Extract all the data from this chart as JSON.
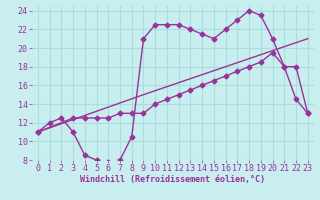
{
  "background_color": "#c8eef0",
  "grid_color": "#aadddd",
  "line_color": "#993399",
  "xlim": [
    -0.5,
    23.5
  ],
  "ylim": [
    8,
    24.5
  ],
  "xticks": [
    0,
    1,
    2,
    3,
    4,
    5,
    6,
    7,
    8,
    9,
    10,
    11,
    12,
    13,
    14,
    15,
    16,
    17,
    18,
    19,
    20,
    21,
    22,
    23
  ],
  "yticks": [
    8,
    10,
    12,
    14,
    16,
    18,
    20,
    22,
    24
  ],
  "xlabel": "Windchill (Refroidissement éolien,°C)",
  "xlabel_fontsize": 6.0,
  "tick_fontsize": 6.0,
  "line1_x": [
    0,
    1,
    2,
    3,
    4,
    5,
    6,
    7,
    8,
    9,
    10,
    11,
    12,
    13,
    14,
    15,
    16,
    17,
    18,
    19,
    20,
    21,
    22,
    23
  ],
  "line1_y": [
    11,
    12,
    12.5,
    11,
    8.5,
    8,
    7.8,
    8,
    10.5,
    21,
    22.5,
    22.5,
    22.5,
    22,
    21.5,
    21,
    22,
    23,
    24,
    23.5,
    21,
    18,
    14.5,
    13
  ],
  "line2_x": [
    0,
    3,
    4,
    5,
    6,
    7,
    8,
    9,
    10,
    11,
    12,
    13,
    14,
    15,
    16,
    17,
    18,
    19,
    20,
    21,
    22,
    23
  ],
  "line2_y": [
    11,
    12.5,
    12.5,
    12.5,
    12.5,
    13,
    13,
    13,
    14,
    14.5,
    15,
    15.5,
    16,
    16.5,
    17,
    17.5,
    18,
    18.5,
    19.5,
    18,
    18,
    13
  ],
  "line3_x": [
    0,
    9,
    23
  ],
  "line3_y": [
    11,
    15,
    21
  ],
  "marker_size": 2.5,
  "linewidth": 1.0
}
